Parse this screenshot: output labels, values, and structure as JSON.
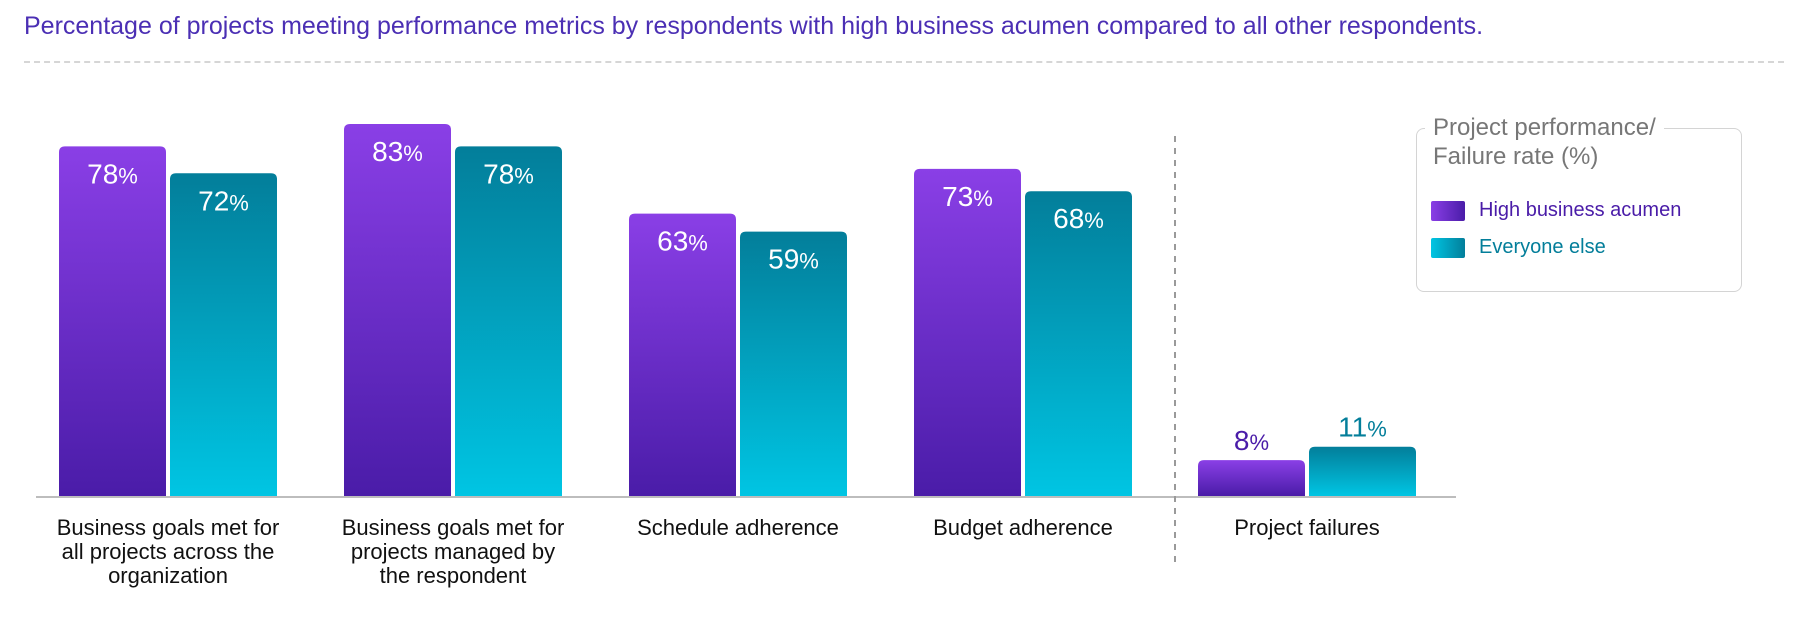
{
  "chart_data": {
    "type": "bar",
    "title": "Percentage of projects meeting performance metrics by respondents with high business acumen compared to all other respondents.",
    "categories": [
      [
        "Business goals met for",
        "all projects across the",
        "organization"
      ],
      [
        "Business goals met for",
        "projects managed by",
        "the respondent"
      ],
      [
        "Schedule adherence"
      ],
      [
        "Budget adherence"
      ],
      [
        "Project failures"
      ]
    ],
    "series": [
      {
        "name": "High business acumen",
        "values": [
          78,
          83,
          63,
          73,
          8
        ],
        "color": "#8A3FE6",
        "color_dark": "#4A1CA8"
      },
      {
        "name": "Everyone else",
        "values": [
          72,
          78,
          59,
          68,
          11
        ],
        "color": "#00C5E3",
        "color_dark": "#037E9A"
      }
    ],
    "value_suffix": "%",
    "ylim": [
      0,
      83
    ],
    "legend": {
      "title_lines": [
        "Project performance/",
        "Failure rate (%)"
      ],
      "placement": "top-right"
    },
    "separator_before_category": 4
  }
}
